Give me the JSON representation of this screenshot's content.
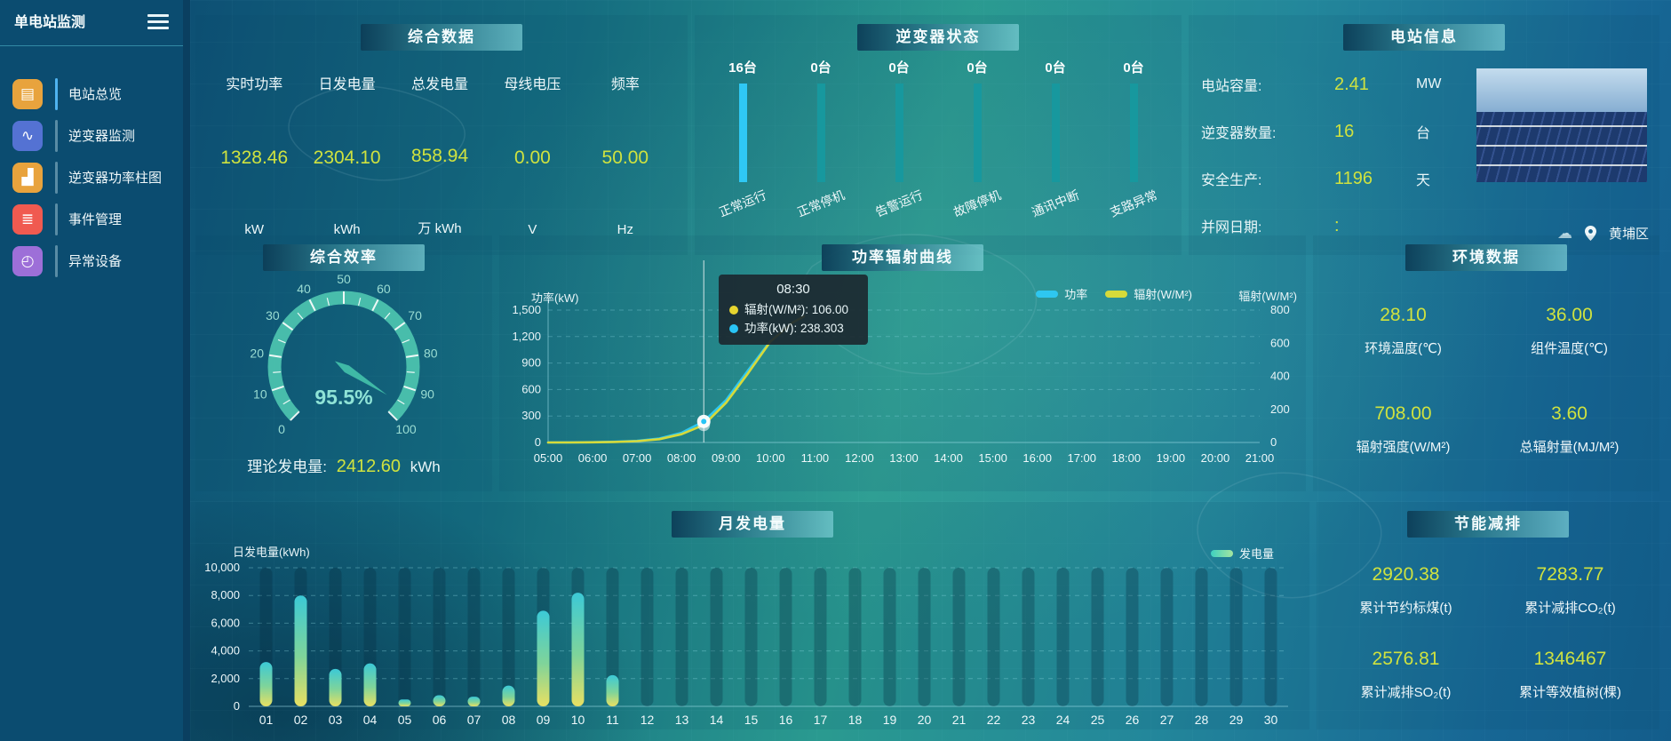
{
  "colors": {
    "value_yellow": "#cfe23f",
    "inverter_bar_active": "#2fc8f5",
    "inverter_bar_idle": "#17989e",
    "line_power": "#2ec7f0",
    "line_radiation": "#d6da3a",
    "gauge": "#4cc2ae",
    "monthly_bar_top": "#3cc9d6",
    "monthly_bar_bottom": "#e8e062",
    "legend_generation": "#55d8b8"
  },
  "sidebar": {
    "title": "单电站监测",
    "items": [
      {
        "label": "电站总览",
        "icon": "station-overview-icon",
        "color": "#e8a33d",
        "active": true
      },
      {
        "label": "逆变器监测",
        "icon": "inverter-monitor-icon",
        "color": "#5472d3",
        "active": false
      },
      {
        "label": "逆变器功率柱图",
        "icon": "inverter-power-bars-icon",
        "color": "#e8a33d",
        "active": false
      },
      {
        "label": "事件管理",
        "icon": "event-management-icon",
        "color": "#f05a50",
        "active": false
      },
      {
        "label": "异常设备",
        "icon": "abnormal-device-icon",
        "color": "#9d6fd8",
        "active": false
      }
    ]
  },
  "panels": {
    "summary": {
      "title": "综合数据",
      "stats": [
        {
          "label": "实时功率",
          "value": "1328.46",
          "unit": "kW"
        },
        {
          "label": "日发电量",
          "value": "2304.10",
          "unit": "kWh"
        },
        {
          "label": "总发电量",
          "value": "858.94",
          "unit": "万 kWh"
        },
        {
          "label": "母线电压",
          "value": "0.00",
          "unit": "V"
        },
        {
          "label": "频率",
          "value": "50.00",
          "unit": "Hz"
        }
      ]
    },
    "inverter_status": {
      "title": "逆变器状态",
      "bars": [
        {
          "count": "16台",
          "label": "正常运行",
          "active": true
        },
        {
          "count": "0台",
          "label": "正常停机",
          "active": false
        },
        {
          "count": "0台",
          "label": "告警运行",
          "active": false
        },
        {
          "count": "0台",
          "label": "故障停机",
          "active": false
        },
        {
          "count": "0台",
          "label": "通讯中断",
          "active": false
        },
        {
          "count": "0台",
          "label": "支路异常",
          "active": false
        }
      ]
    },
    "station_info": {
      "title": "电站信息",
      "rows": [
        {
          "label": "电站容量:",
          "value": "2.41",
          "unit": "MW"
        },
        {
          "label": "逆变器数量:",
          "value": "16",
          "unit": "台"
        },
        {
          "label": "安全生产:",
          "value": "1196",
          "unit": "天"
        },
        {
          "label": "并网日期:",
          "value": ":",
          "unit": ""
        }
      ],
      "location": "黄埔区"
    },
    "efficiency": {
      "title": "综合效率",
      "value_display": "95.5%",
      "theory_label": "理论发电量:",
      "theory_value": "2412.60",
      "theory_unit": "kWh"
    },
    "power_curve": {
      "title": "功率辐射曲线",
      "left_axis_title": "功率(kW)",
      "right_axis_title": "辐射(W/M²)",
      "legend": [
        {
          "label": "功率",
          "color": "#2ec7f0"
        },
        {
          "label": "辐射(W/M²)",
          "color": "#d6da3a"
        }
      ],
      "tooltip": {
        "time": "08:30",
        "rows": [
          {
            "label": "辐射(W/M²)",
            "value": "106.00",
            "color": "#e6d52f"
          },
          {
            "label": "功率(kW)",
            "value": "238.303",
            "color": "#29c5f6"
          }
        ]
      }
    },
    "environment": {
      "title": "环境数据",
      "items": [
        {
          "value": "28.10",
          "label": "环境温度(℃)"
        },
        {
          "value": "36.00",
          "label": "组件温度(℃)"
        },
        {
          "value": "708.00",
          "label": "辐射强度(W/M²)"
        },
        {
          "value": "3.60",
          "label": "总辐射量(MJ/M²)"
        }
      ]
    },
    "monthly": {
      "title": "月发电量",
      "axis_title": "日发电量(kWh)",
      "legend": "发电量"
    },
    "saving": {
      "title": "节能减排",
      "items": [
        {
          "value": "2920.38",
          "label": "累计节约标煤(t)"
        },
        {
          "value": "7283.77",
          "label": "累计减排CO₂(t)"
        },
        {
          "value": "2576.81",
          "label": "累计减排SO₂(t)"
        },
        {
          "value": "1346467",
          "label": "累计等效植树(棵)"
        }
      ]
    }
  },
  "chart_data": [
    {
      "type": "bar",
      "title": "逆变器状态",
      "categories": [
        "正常运行",
        "正常停机",
        "告警运行",
        "故障停机",
        "通讯中断",
        "支路异常"
      ],
      "values": [
        16,
        0,
        0,
        0,
        0,
        0
      ],
      "unit": "台"
    },
    {
      "type": "gauge",
      "title": "综合效率",
      "value": 95.5,
      "min": 0,
      "max": 100,
      "unit": "%",
      "tick_step": 10
    },
    {
      "type": "line",
      "title": "功率辐射曲线",
      "x_ticks": [
        "05:00",
        "06:00",
        "07:00",
        "08:00",
        "09:00",
        "10:00",
        "11:00",
        "12:00",
        "13:00",
        "14:00",
        "15:00",
        "16:00",
        "17:00",
        "18:00",
        "19:00",
        "20:00",
        "21:00"
      ],
      "left_axis": {
        "label": "功率(kW)",
        "range": [
          0,
          1500
        ],
        "tick_labels": [
          "0",
          "300",
          "600",
          "900",
          "1,200",
          "1,500"
        ]
      },
      "right_axis": {
        "label": "辐射(W/M²)",
        "range": [
          0,
          800
        ],
        "tick_labels": [
          "0",
          "200",
          "400",
          "600",
          "800"
        ]
      },
      "series": [
        {
          "name": "功率",
          "axis": "left",
          "color": "#2ec7f0",
          "points": [
            [
              5,
              0
            ],
            [
              5.5,
              1
            ],
            [
              6,
              3
            ],
            [
              6.5,
              8
            ],
            [
              7,
              18
            ],
            [
              7.5,
              45
            ],
            [
              8,
              110
            ],
            [
              8.5,
              238.3
            ],
            [
              9,
              480
            ],
            [
              9.5,
              820
            ],
            [
              10,
              1150
            ],
            [
              10.5,
              1360
            ],
            [
              10.75,
              1430
            ]
          ]
        },
        {
          "name": "辐射(W/M²)",
          "axis": "right",
          "color": "#d6da3a",
          "points": [
            [
              5,
              0
            ],
            [
              5.5,
              0
            ],
            [
              6,
              1
            ],
            [
              6.5,
              3
            ],
            [
              7,
              8
            ],
            [
              7.5,
              20
            ],
            [
              8,
              50
            ],
            [
              8.5,
              106
            ],
            [
              9,
              240
            ],
            [
              9.5,
              420
            ],
            [
              10,
              610
            ],
            [
              10.5,
              725
            ],
            [
              10.75,
              762
            ]
          ]
        }
      ],
      "highlight": {
        "time": "08:30",
        "hour": 8.5,
        "power": 238.303,
        "radiation": 106.0
      },
      "legend_position": "top-right",
      "grid": "dashed-horizontal"
    },
    {
      "type": "bar",
      "title": "月发电量",
      "ylabel": "日发电量(kWh)",
      "ylim": [
        0,
        10000
      ],
      "y_tick_labels": [
        "0",
        "2,000",
        "4,000",
        "6,000",
        "8,000",
        "10,000"
      ],
      "categories": [
        "01",
        "02",
        "03",
        "04",
        "05",
        "06",
        "07",
        "08",
        "09",
        "10",
        "11",
        "12",
        "13",
        "14",
        "15",
        "16",
        "17",
        "18",
        "19",
        "20",
        "21",
        "22",
        "23",
        "24",
        "25",
        "26",
        "27",
        "28",
        "29",
        "30"
      ],
      "values": [
        3200,
        8000,
        2700,
        3100,
        500,
        800,
        700,
        1500,
        6900,
        8200,
        2250,
        0,
        0,
        0,
        0,
        0,
        0,
        0,
        0,
        0,
        0,
        0,
        0,
        0,
        0,
        0,
        0,
        0,
        0,
        0
      ],
      "legend": "发电量",
      "grid": "dashed-horizontal"
    }
  ]
}
